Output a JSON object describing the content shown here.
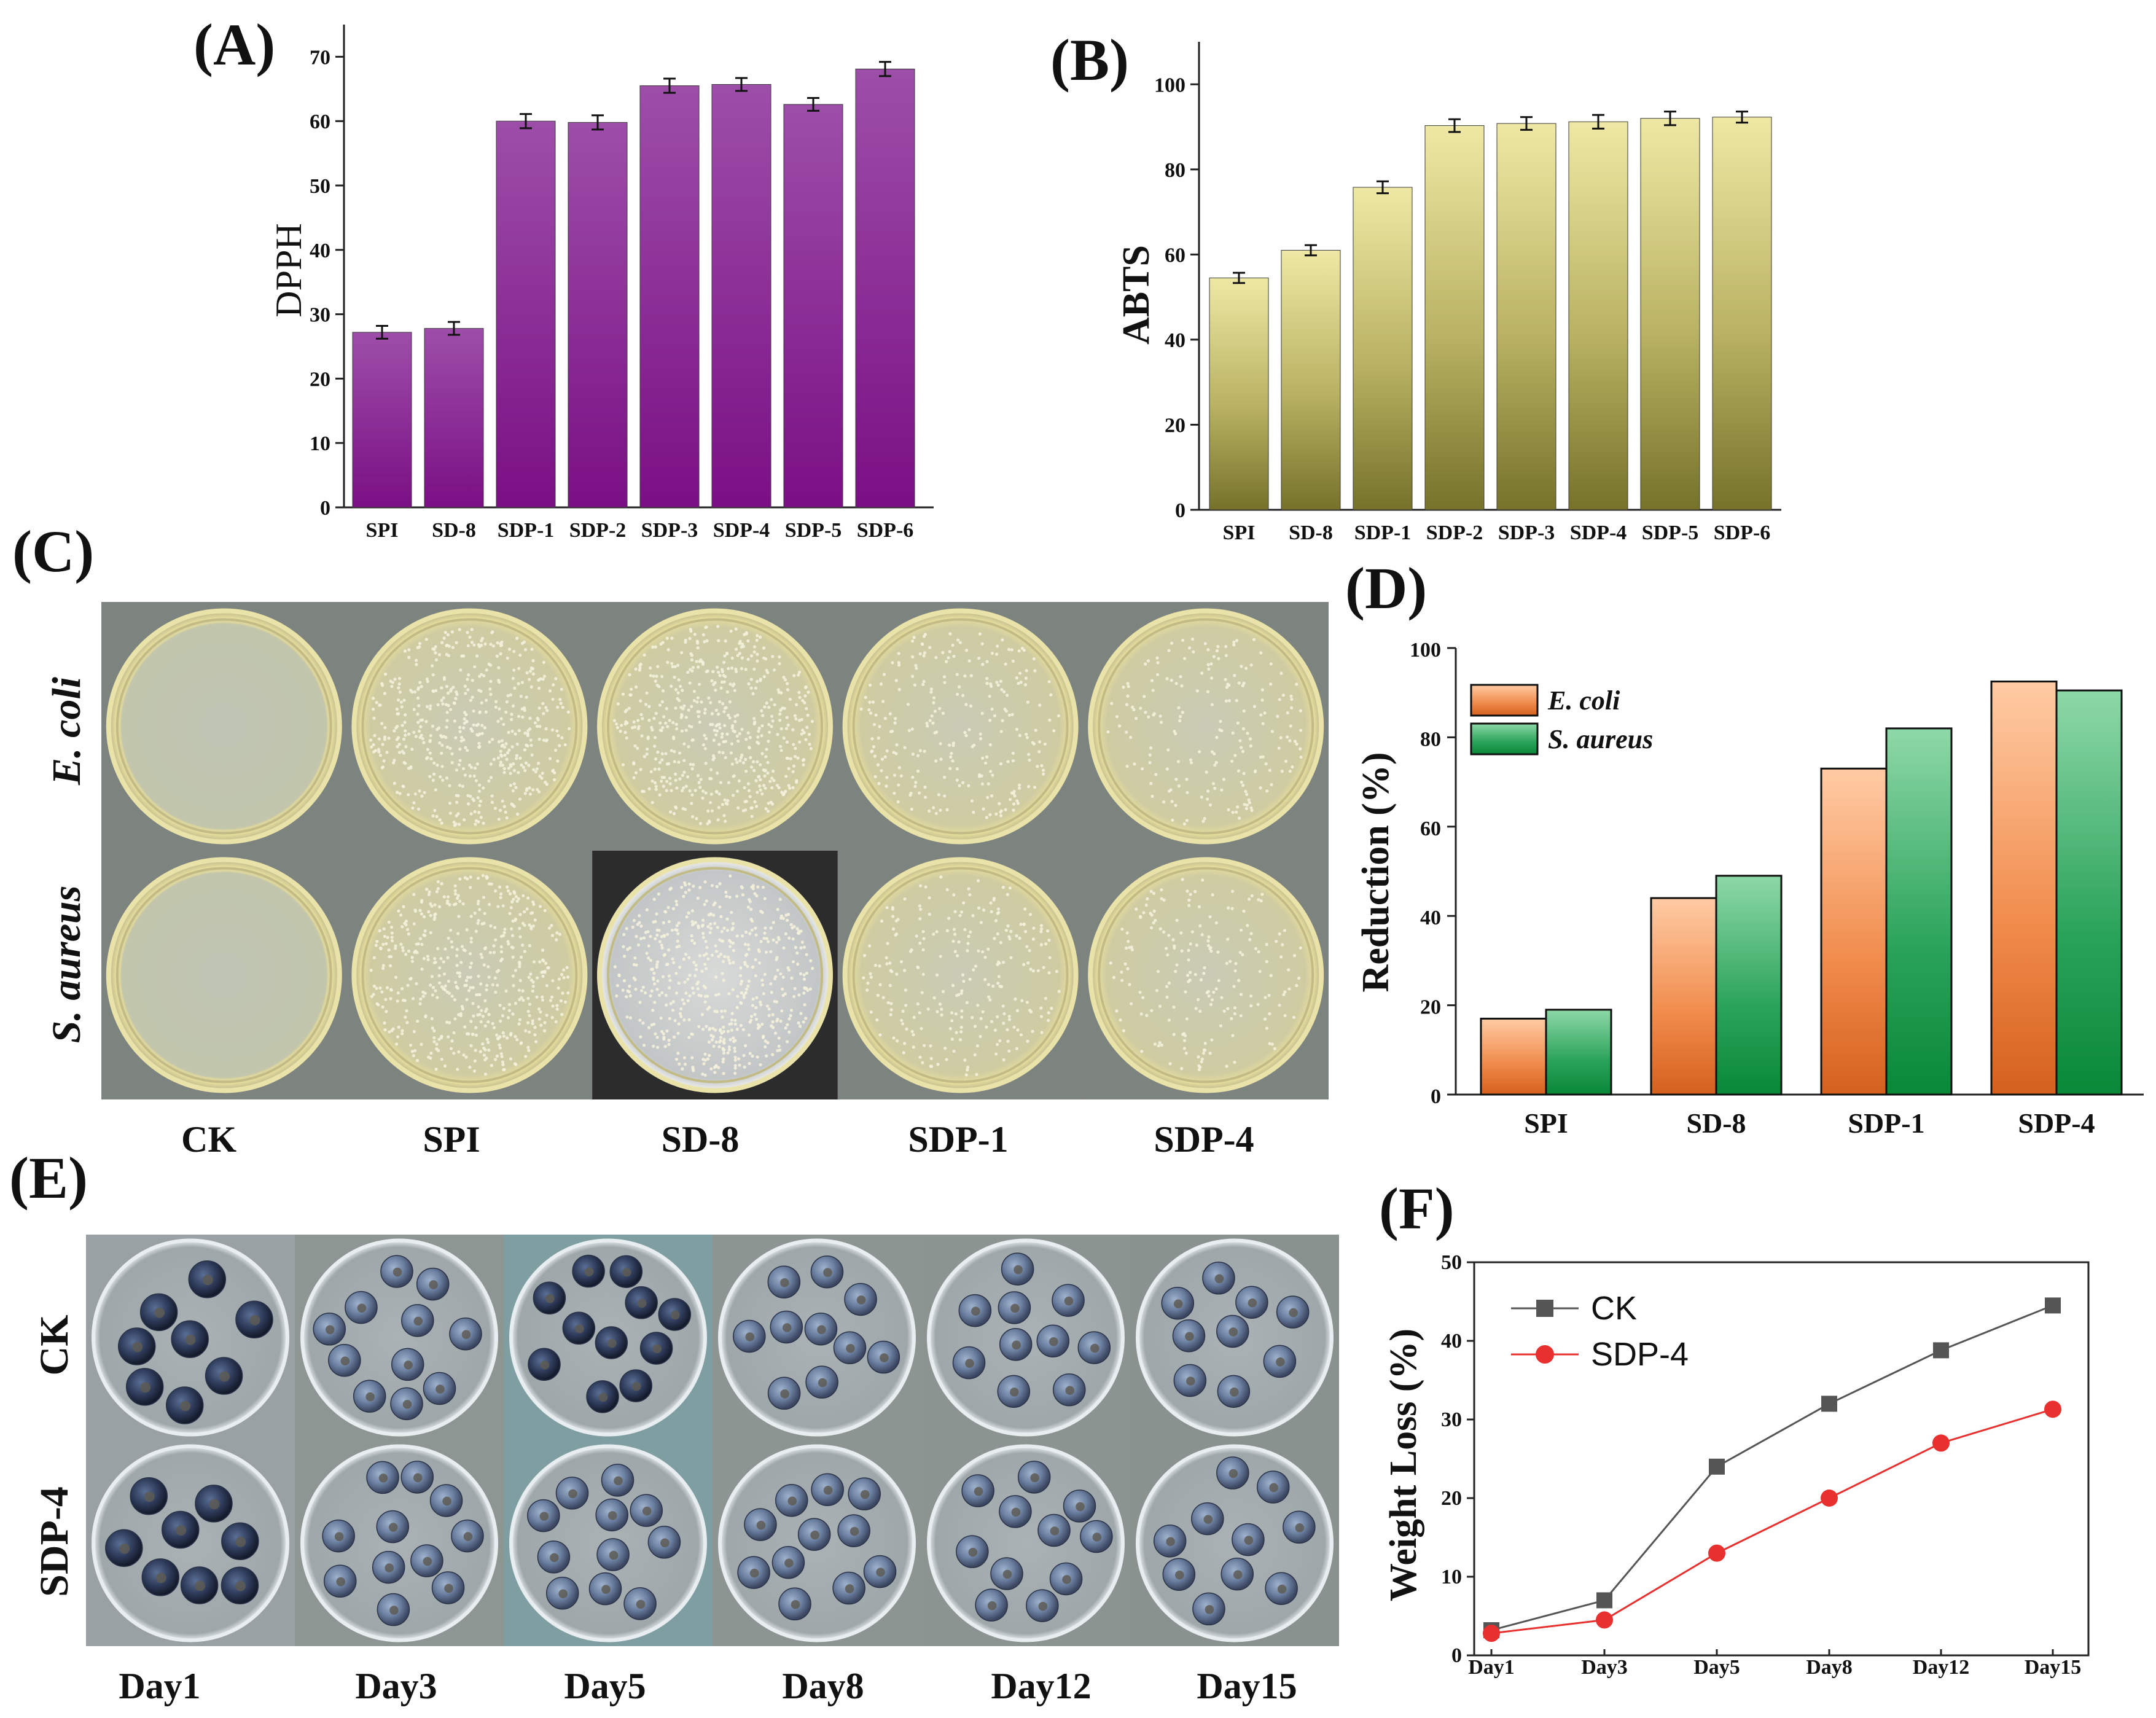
{
  "panels": {
    "A": "(A)",
    "B": "(B)",
    "C": "(C)",
    "D": "(D)",
    "E": "(E)",
    "F": "(F)"
  },
  "photo_panels": {
    "C": {
      "rows": [
        "E. coli",
        "S. aureus"
      ],
      "columns": [
        "CK",
        "SPI",
        "SD-8",
        "SDP-1",
        "SDP-4"
      ]
    },
    "E": {
      "rows": [
        "CK",
        "SDP-4"
      ],
      "columns": [
        "Day1",
        "Day3",
        "Day5",
        "Day8",
        "Day12",
        "Day15"
      ]
    }
  },
  "colors": {
    "A_top": "#9b4aa6",
    "A_bottom": "#7a0f84",
    "B_top": "#ece6a0",
    "B_bottom": "#78752a",
    "D_ecoli_top": "#ffc8a0",
    "D_ecoli_bottom": "#d9621e",
    "D_saureus_top": "#8cd6a6",
    "D_saureus_bottom": "#0a8a3c",
    "F_ck": "#555555",
    "F_sdp4": "#e8302e",
    "plate_bg": "#d9d4a8",
    "berry": "#3e4b66"
  },
  "chart_data": [
    {
      "id": "A",
      "type": "bar",
      "title": "",
      "xlabel": "",
      "ylabel": "DPPH",
      "categories": [
        "SPI",
        "SD-8",
        "SDP-1",
        "SDP-2",
        "SDP-3",
        "SDP-4",
        "SDP-5",
        "SDP-6"
      ],
      "values": [
        27.2,
        27.8,
        60.0,
        59.8,
        65.5,
        65.7,
        62.6,
        68.1
      ],
      "errors": [
        1.0,
        1.0,
        1.1,
        1.1,
        1.1,
        1.0,
        1.0,
        1.1
      ],
      "ylim": [
        0,
        75
      ],
      "yticks": [
        0,
        10,
        20,
        30,
        40,
        50,
        60,
        70
      ]
    },
    {
      "id": "B",
      "type": "bar",
      "title": "",
      "xlabel": "",
      "ylabel": "ABTS",
      "categories": [
        "SPI",
        "SD-8",
        "SDP-1",
        "SDP-2",
        "SDP-3",
        "SDP-4",
        "SDP-5",
        "SDP-6"
      ],
      "values": [
        54.5,
        61.0,
        75.8,
        90.3,
        90.8,
        91.2,
        92.0,
        92.3
      ],
      "errors": [
        1.2,
        1.2,
        1.4,
        1.5,
        1.5,
        1.6,
        1.6,
        1.3
      ],
      "ylim": [
        0,
        110
      ],
      "yticks": [
        0,
        20,
        40,
        60,
        80,
        100
      ]
    },
    {
      "id": "D",
      "type": "bar",
      "title": "",
      "xlabel": "",
      "ylabel": "Reduction (%)",
      "categories": [
        "SPI",
        "SD-8",
        "SDP-1",
        "SDP-4"
      ],
      "series": [
        {
          "name": "E. coli",
          "values": [
            17,
            44,
            73,
            92.5
          ]
        },
        {
          "name": "S. aureus",
          "values": [
            19,
            49,
            82,
            90.5
          ]
        }
      ],
      "ylim": [
        0,
        100
      ],
      "yticks": [
        0,
        20,
        40,
        60,
        80,
        100
      ],
      "legend": "top-left"
    },
    {
      "id": "F",
      "type": "line",
      "title": "",
      "xlabel": "",
      "ylabel": "Weight Loss (%)",
      "categories": [
        "Day1",
        "Day3",
        "Day5",
        "Day8",
        "Day12",
        "Day15"
      ],
      "series": [
        {
          "name": "CK",
          "values": [
            3.2,
            7.0,
            24.0,
            32.0,
            38.8,
            44.5
          ]
        },
        {
          "name": "SDP-4",
          "values": [
            2.8,
            4.5,
            13.0,
            20.0,
            27.0,
            31.3
          ]
        }
      ],
      "ylim": [
        0,
        50
      ],
      "yticks": [
        0,
        10,
        20,
        30,
        40,
        50
      ],
      "legend": "top-left"
    }
  ]
}
